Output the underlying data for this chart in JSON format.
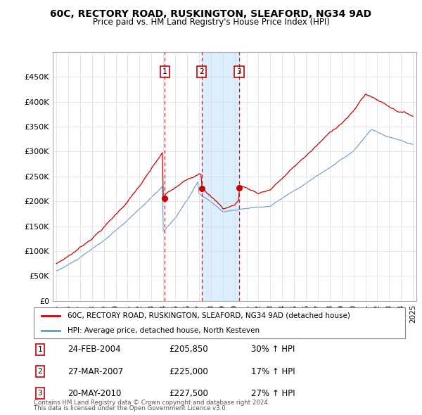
{
  "title": "60C, RECTORY ROAD, RUSKINGTON, SLEAFORD, NG34 9AD",
  "subtitle": "Price paid vs. HM Land Registry's House Price Index (HPI)",
  "red_label": "60C, RECTORY ROAD, RUSKINGTON, SLEAFORD, NG34 9AD (detached house)",
  "blue_label": "HPI: Average price, detached house, North Kesteven",
  "footer1": "Contains HM Land Registry data © Crown copyright and database right 2024.",
  "footer2": "This data is licensed under the Open Government Licence v3.0.",
  "transactions": [
    {
      "num": 1,
      "date": "24-FEB-2004",
      "price": "£205,850",
      "change": "30% ↑ HPI",
      "year": 2004.12
    },
    {
      "num": 2,
      "date": "27-MAR-2007",
      "price": "£225,000",
      "change": "17% ↑ HPI",
      "year": 2007.23
    },
    {
      "num": 3,
      "date": "20-MAY-2010",
      "price": "£227,500",
      "change": "27% ↑ HPI",
      "year": 2010.38
    }
  ],
  "red_color": "#cc0000",
  "blue_color": "#6699cc",
  "shade_color": "#ddeeff",
  "dashed_color": "#cc0000",
  "ylim": [
    0,
    500000
  ],
  "yticks": [
    0,
    50000,
    100000,
    150000,
    200000,
    250000,
    300000,
    350000,
    400000,
    450000
  ],
  "xlim": [
    1994.7,
    2025.3
  ],
  "bg_color": "#f0f4ff"
}
